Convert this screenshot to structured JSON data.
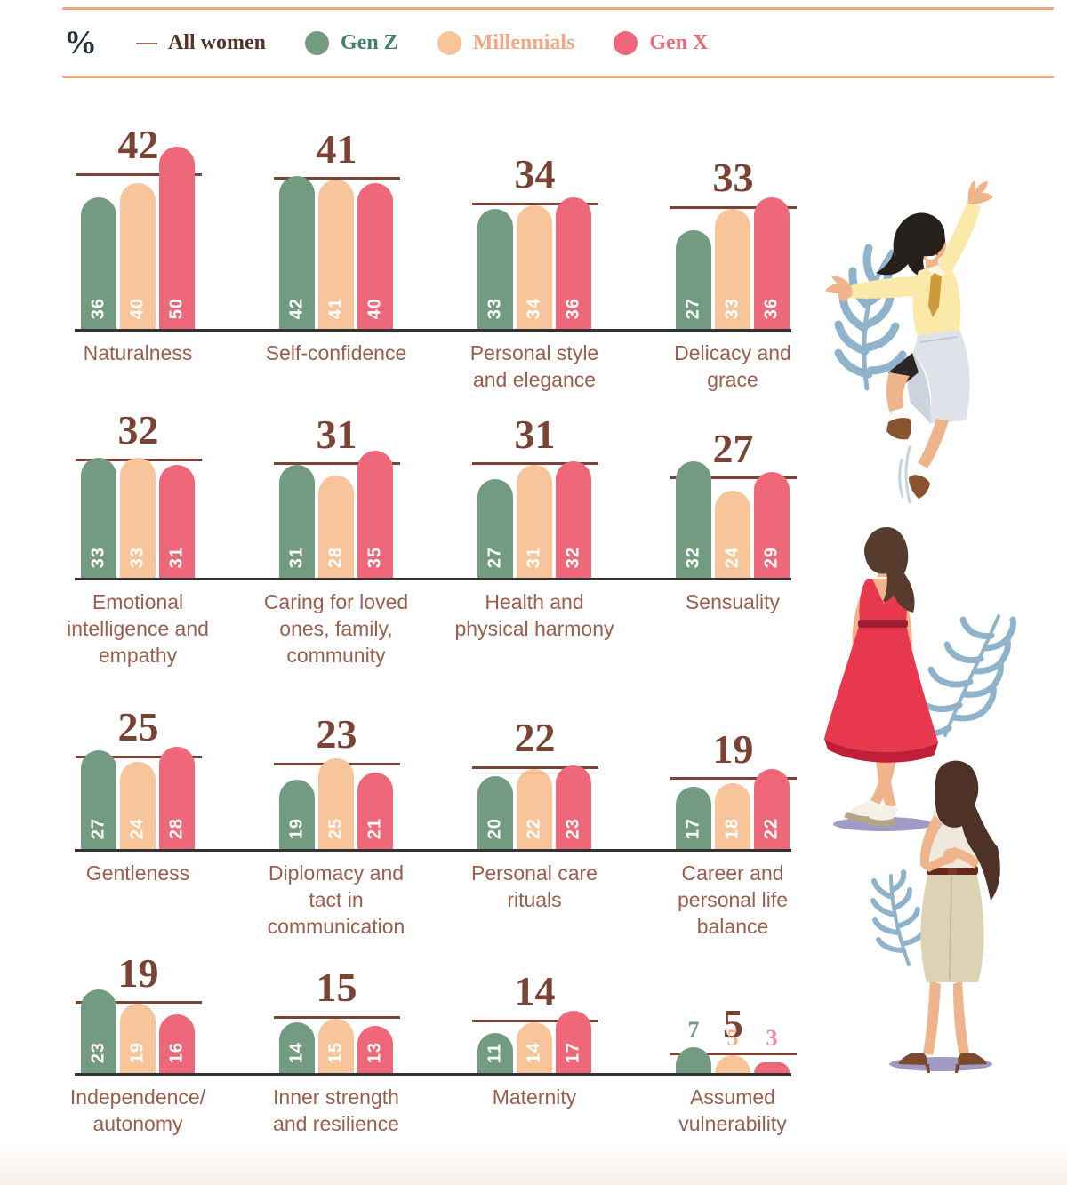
{
  "header": {
    "unit_symbol": "%",
    "legend": {
      "reference": {
        "dash": "—",
        "label": "All women"
      },
      "series": [
        {
          "label": "Gen Z"
        },
        {
          "label": "Millennials"
        },
        {
          "label": "Gen X"
        }
      ]
    }
  },
  "colors": {
    "bar_gen_z": "#729b82",
    "bar_millennials": "#f8c49a",
    "bar_gen_x": "#ee6879",
    "legend_text_gen_z": "#41806f",
    "legend_text_millennials": "#f4a581",
    "legend_text_gen_x": "#ee6879",
    "legend_text_all_women": "#533327",
    "reference_line": "#7b4334",
    "big_number": "#7b4334",
    "category_label": "#9a5e4c",
    "baseline": "#333333",
    "top_rule": "#f3a47c",
    "above_value_colors": [
      "#6f9b80",
      "#f4b183",
      "#f28b99"
    ]
  },
  "chart_data": {
    "type": "bar",
    "unit": "%",
    "series_names": [
      "Gen Z",
      "Millennials",
      "Gen X"
    ],
    "reference_series": "All women",
    "groups": [
      {
        "label": "Naturalness",
        "all_women": 42,
        "values": [
          36,
          40,
          50
        ]
      },
      {
        "label": "Self-confidence",
        "all_women": 41,
        "values": [
          42,
          41,
          40
        ]
      },
      {
        "label": "Personal style\nand elegance",
        "all_women": 34,
        "values": [
          33,
          34,
          36
        ]
      },
      {
        "label": "Delicacy and\ngrace",
        "all_women": 33,
        "values": [
          27,
          33,
          36
        ]
      },
      {
        "label": "Emotional\nintelligence and\nempathy",
        "all_women": 32,
        "values": [
          33,
          33,
          31
        ]
      },
      {
        "label": "Caring for loved\nones, family,\ncommunity",
        "all_women": 31,
        "values": [
          31,
          28,
          35
        ]
      },
      {
        "label": "Health and\nphysical harmony",
        "all_women": 31,
        "values": [
          27,
          31,
          32
        ]
      },
      {
        "label": "Sensuality",
        "all_women": 27,
        "values": [
          32,
          24,
          29
        ]
      },
      {
        "label": "Gentleness",
        "all_women": 25,
        "values": [
          27,
          24,
          28
        ]
      },
      {
        "label": "Diplomacy and\ntact in\ncommunication",
        "all_women": 23,
        "values": [
          19,
          25,
          21
        ]
      },
      {
        "label": "Personal care\nrituals",
        "all_women": 22,
        "values": [
          20,
          22,
          23
        ]
      },
      {
        "label": "Career and\npersonal life\nbalance",
        "all_women": 19,
        "values": [
          17,
          18,
          22
        ]
      },
      {
        "label": "Independence/\nautonomy",
        "all_women": 19,
        "values": [
          23,
          19,
          16
        ]
      },
      {
        "label": "Inner strength\nand resilience",
        "all_women": 15,
        "values": [
          14,
          15,
          13
        ]
      },
      {
        "label": "Maternity",
        "all_women": 14,
        "values": [
          11,
          14,
          17
        ]
      },
      {
        "label": "Assumed\nvulnerability",
        "all_women": 5,
        "values": [
          7,
          5,
          3
        ],
        "value_labels": "above"
      }
    ]
  },
  "illustrations": [
    {
      "name": "dancing-woman"
    },
    {
      "name": "woman-in-red-dress"
    },
    {
      "name": "woman-in-beige-skirt"
    }
  ]
}
